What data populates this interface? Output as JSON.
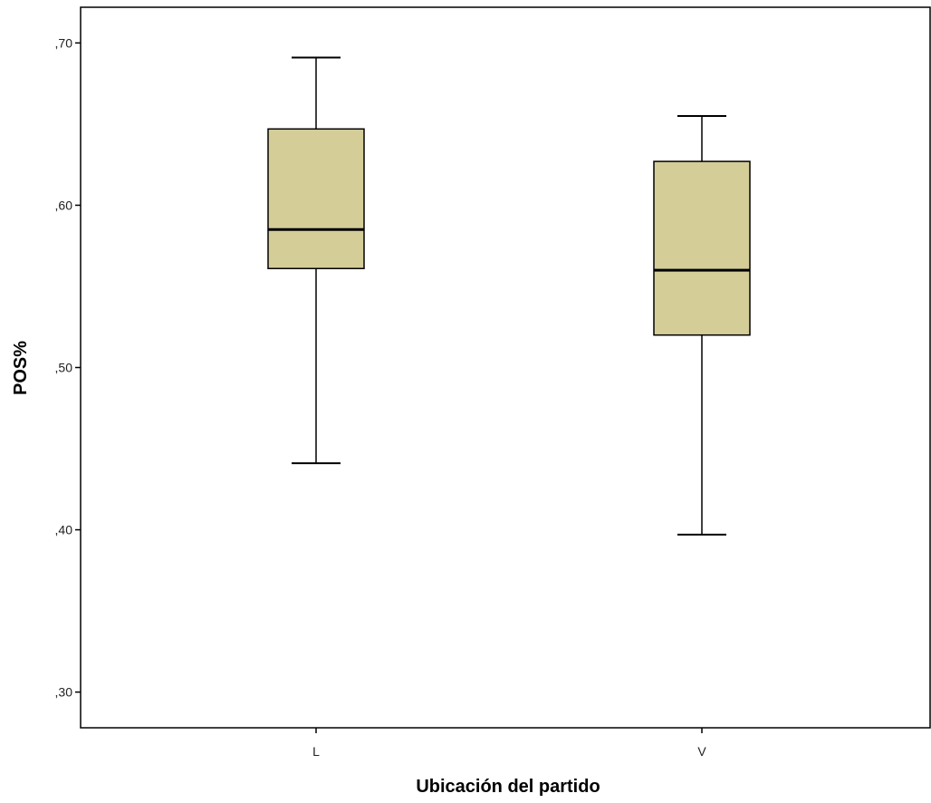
{
  "chart_data": {
    "type": "box",
    "title": "",
    "xlabel": "Ubicación del partido",
    "ylabel": "POS%",
    "categories": [
      "L",
      "V"
    ],
    "boxes": [
      {
        "category": "L",
        "whisker_low": 0.441,
        "q1": 0.561,
        "median": 0.585,
        "q3": 0.647,
        "whisker_high": 0.691
      },
      {
        "category": "V",
        "whisker_low": 0.397,
        "q1": 0.52,
        "median": 0.56,
        "q3": 0.627,
        "whisker_high": 0.655
      }
    ],
    "ylim": [
      0.278,
      0.722
    ],
    "yticks": [
      0.3,
      0.4,
      0.5,
      0.6,
      0.7
    ],
    "ytick_labels": [
      ",30",
      ",40",
      ",50",
      ",60",
      ",70"
    ],
    "grid": false,
    "legend": "none",
    "colors": {
      "box_fill": "#d4cd98",
      "stroke": "#000000"
    }
  }
}
